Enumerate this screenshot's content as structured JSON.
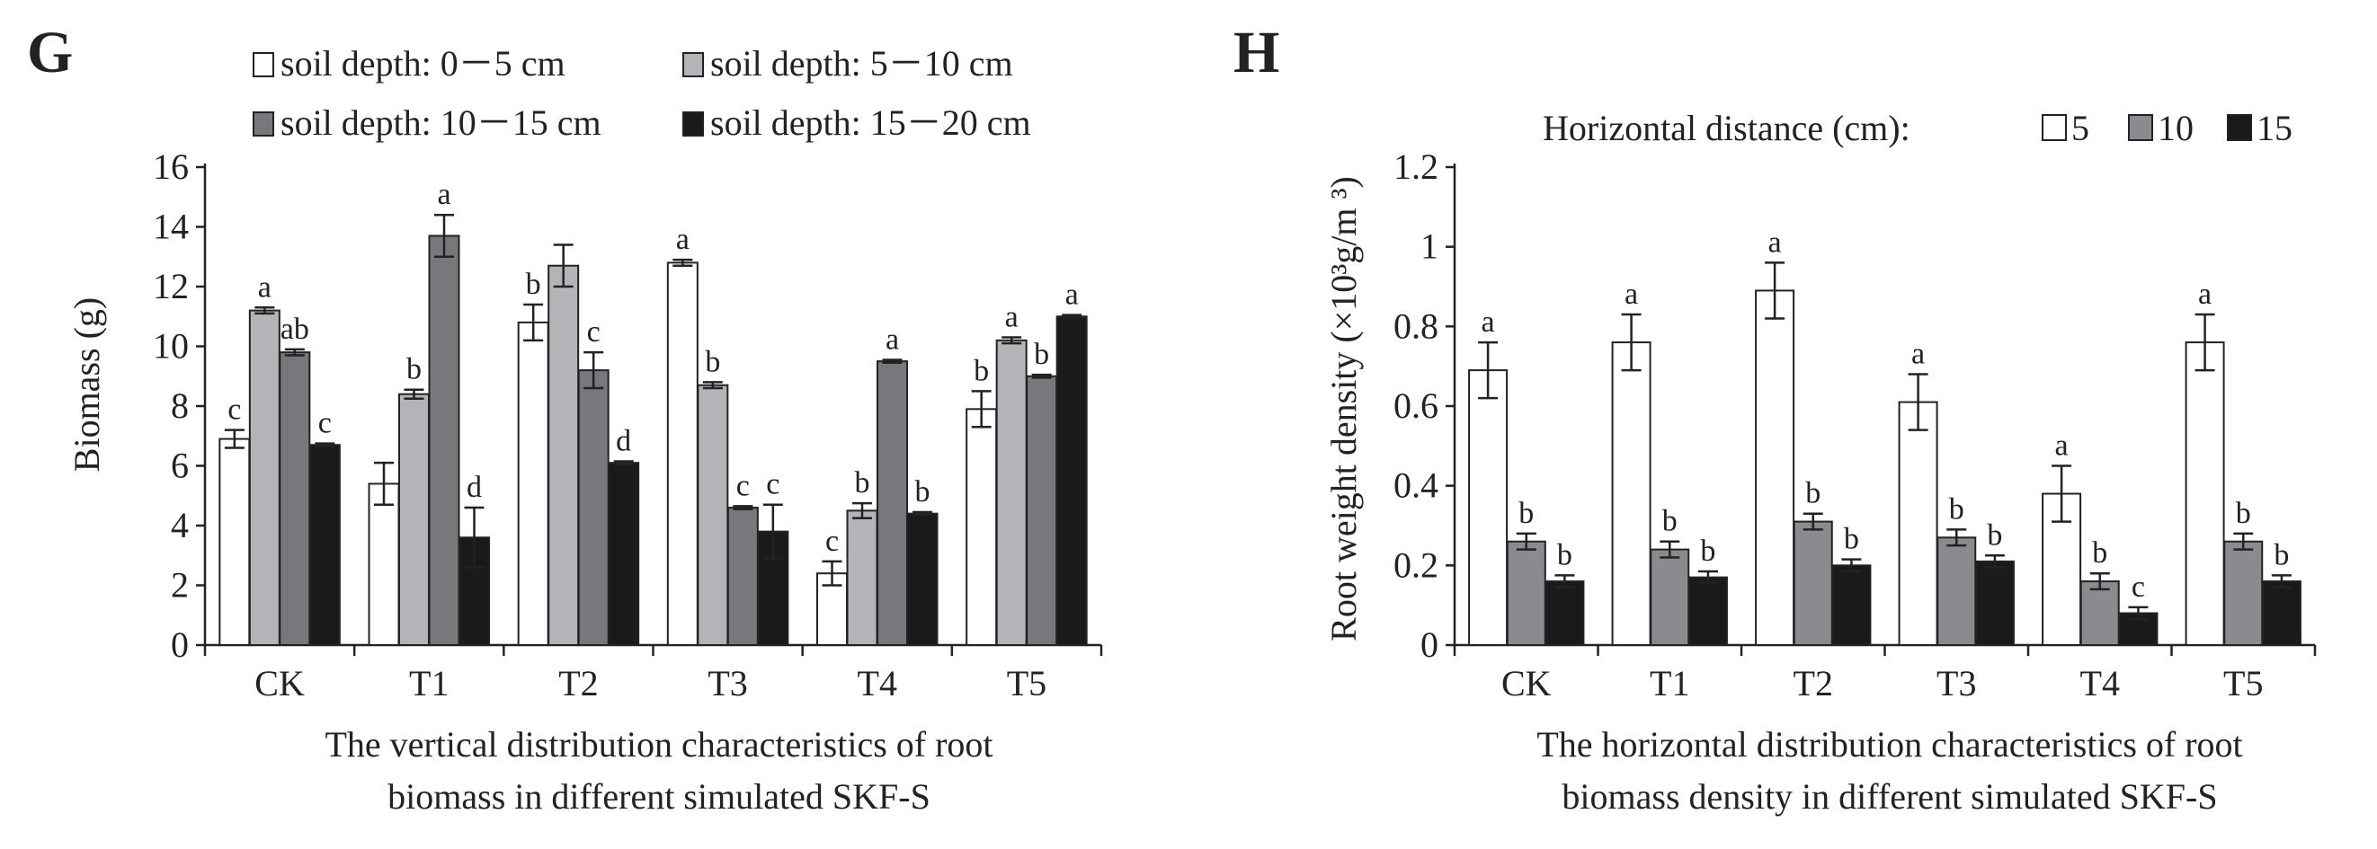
{
  "chart_data": [
    {
      "panel": "G",
      "type": "bar",
      "title": "",
      "xlabel": "The vertical distribution characteristics of root biomass  in different simulated SKF-S",
      "caption_lines": [
        "The vertical distribution characteristics of root",
        "biomass  in different simulated SKF-S"
      ],
      "ylabel": "Biomass (g)",
      "ylim": [
        0,
        16
      ],
      "yticks": [
        "0",
        "2",
        "4",
        "6",
        "8",
        "10",
        "12",
        "14",
        "16"
      ],
      "ytick_values": [
        0,
        2,
        4,
        6,
        8,
        10,
        12,
        14,
        16
      ],
      "categories": [
        "CK",
        "T1",
        "T2",
        "T3",
        "T4",
        "T5"
      ],
      "legend_position": "top",
      "series": [
        {
          "name": "soil depth: 0－5 cm",
          "color": "#ffffff",
          "values": [
            6.9,
            5.4,
            10.8,
            12.8,
            2.4,
            7.9
          ],
          "errors": [
            0.3,
            0.7,
            0.6,
            0.1,
            0.4,
            0.6
          ],
          "sig": [
            "c",
            "",
            "b",
            "a",
            "c",
            "b"
          ]
        },
        {
          "name": "soil depth: 5－10 cm",
          "color": "#b4b4b8",
          "values": [
            11.2,
            8.4,
            12.7,
            8.7,
            4.5,
            10.2
          ],
          "errors": [
            0.1,
            0.15,
            0.7,
            0.1,
            0.25,
            0.1
          ],
          "sig": [
            "a",
            "b",
            "",
            "b",
            "b",
            "a"
          ]
        },
        {
          "name": "soil depth: 10－15 cm",
          "color": "#77777c",
          "values": [
            9.8,
            13.7,
            9.2,
            4.6,
            9.5,
            9.0
          ],
          "errors": [
            0.1,
            0.7,
            0.6,
            0.05,
            0.05,
            0.05
          ],
          "sig": [
            "ab",
            "a",
            "c",
            "c",
            "a",
            "b"
          ]
        },
        {
          "name": "soil depth: 15－20 cm",
          "color": "#1a1a1a",
          "values": [
            6.7,
            3.6,
            6.1,
            3.8,
            4.4,
            11.0
          ],
          "errors": [
            0.05,
            1.0,
            0.05,
            0.9,
            0.05,
            0.05
          ],
          "sig": [
            "c",
            "d",
            "d",
            "c",
            "b",
            "a"
          ]
        }
      ]
    },
    {
      "panel": "H",
      "type": "bar",
      "title": "",
      "xlabel": "The horizontal distribution characteristics of root biomass density in different simulated SKF-S",
      "caption_lines": [
        "The horizontal distribution characteristics of root",
        "biomass density in different simulated SKF-S"
      ],
      "ylabel": "Root weight density (×10³g/m ³)",
      "ylim": [
        0,
        1.2
      ],
      "yticks": [
        "0",
        "0.2",
        "0.4",
        "0.6",
        "0.8",
        "1",
        "1.2"
      ],
      "ytick_values": [
        0,
        0.2,
        0.4,
        0.6,
        0.8,
        1.0,
        1.2
      ],
      "categories": [
        "CK",
        "T1",
        "T2",
        "T3",
        "T4",
        "T5"
      ],
      "legend_title": "Horizontal distance  (cm):",
      "legend_position": "top",
      "series": [
        {
          "name": "5",
          "color": "#ffffff",
          "values": [
            0.69,
            0.76,
            0.89,
            0.61,
            0.38,
            0.76
          ],
          "errors": [
            0.07,
            0.07,
            0.07,
            0.07,
            0.07,
            0.07
          ],
          "sig": [
            "a",
            "a",
            "a",
            "a",
            "a",
            "a"
          ]
        },
        {
          "name": "10",
          "color": "#8a8a8f",
          "values": [
            0.26,
            0.24,
            0.31,
            0.27,
            0.16,
            0.26
          ],
          "errors": [
            0.02,
            0.02,
            0.02,
            0.02,
            0.02,
            0.02
          ],
          "sig": [
            "b",
            "b",
            "b",
            "b",
            "b",
            "b"
          ]
        },
        {
          "name": "15",
          "color": "#1a1a1a",
          "values": [
            0.16,
            0.17,
            0.2,
            0.21,
            0.08,
            0.16
          ],
          "errors": [
            0.015,
            0.015,
            0.015,
            0.015,
            0.015,
            0.015
          ],
          "sig": [
            "b",
            "b",
            "b",
            "b",
            "c",
            "b"
          ]
        }
      ]
    }
  ]
}
